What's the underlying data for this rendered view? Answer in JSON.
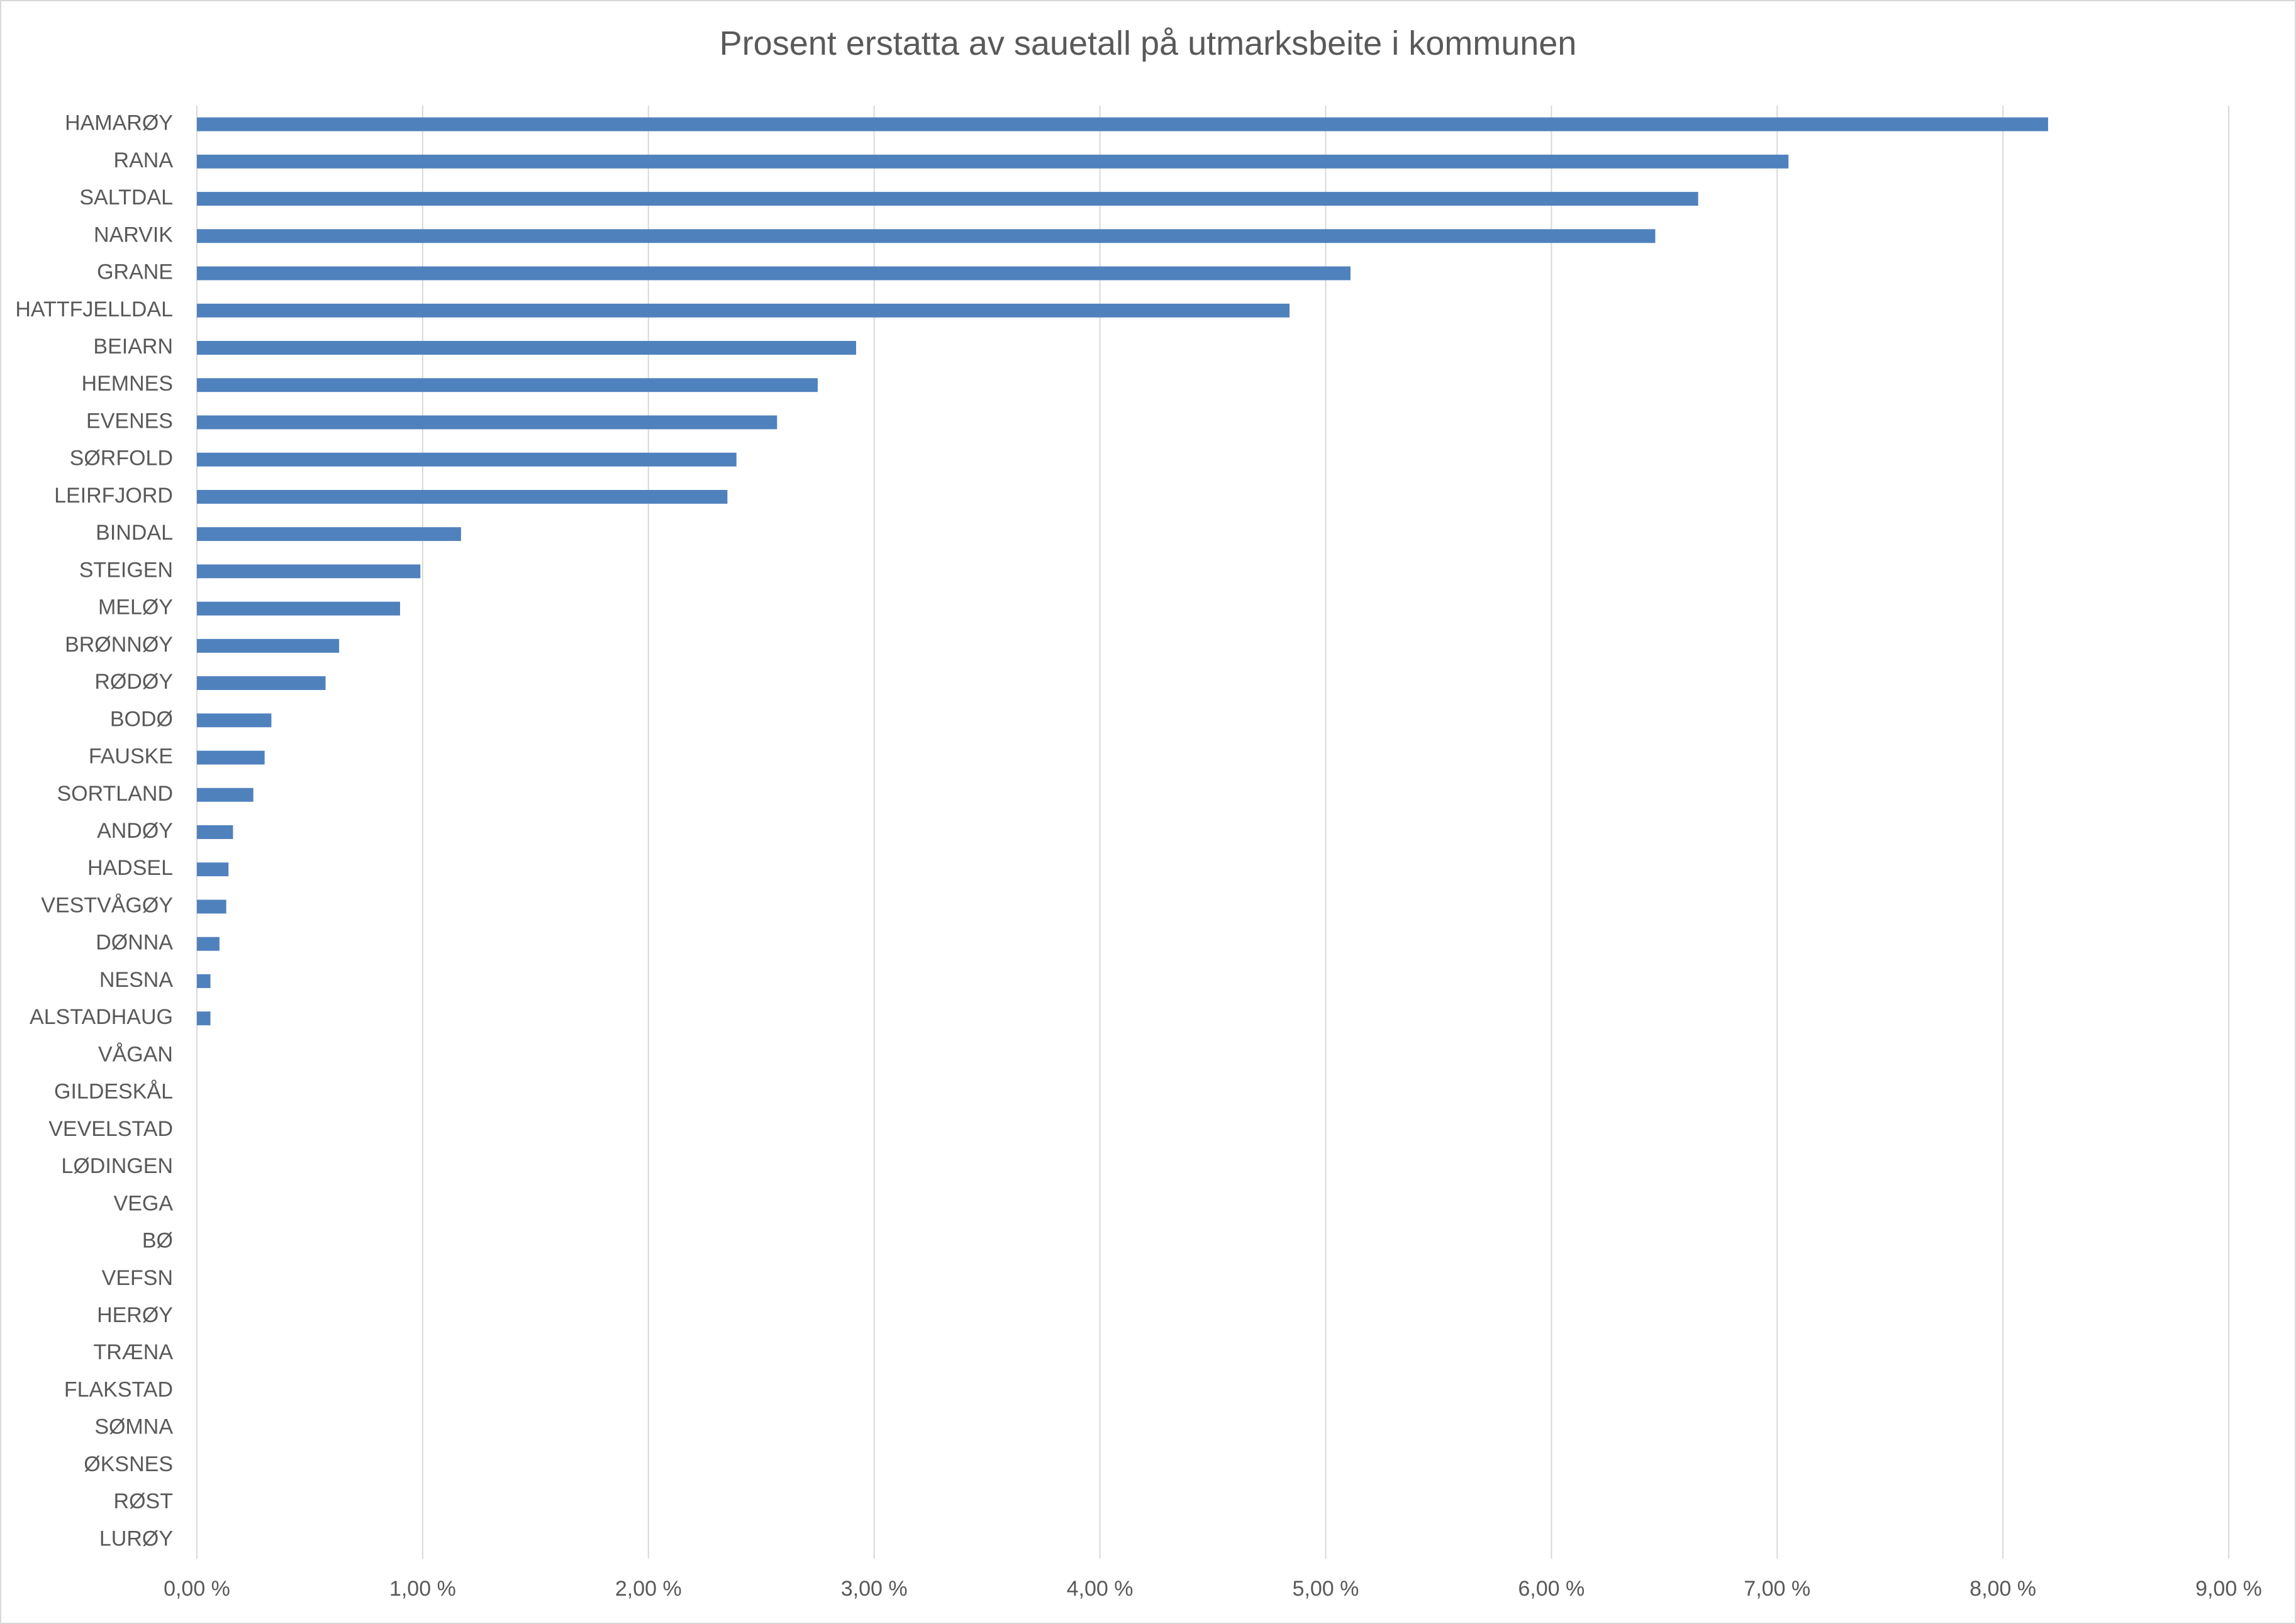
{
  "colors": {
    "bar": "#4f81bd",
    "grid": "#d9d9d9",
    "text": "#595959"
  },
  "chart_data": {
    "type": "bar",
    "orientation": "horizontal",
    "title": "Prosent erstatta av sauetall på utmarksbeite i kommunen",
    "xlabel": "",
    "ylabel": "",
    "xlim": [
      0,
      9
    ],
    "grid": true,
    "legend": "none",
    "x_tick_values": [
      0,
      1,
      2,
      3,
      4,
      5,
      6,
      7,
      8,
      9
    ],
    "x_tick_labels": [
      "0,00 %",
      "1,00 %",
      "2,00 %",
      "3,00 %",
      "4,00 %",
      "5,00 %",
      "6,00 %",
      "7,00 %",
      "8,00 %",
      "9,00 %"
    ],
    "categories": [
      "HAMARØY",
      "RANA",
      "SALTDAL",
      "NARVIK",
      "GRANE",
      "HATTFJELLDAL",
      "BEIARN",
      "HEMNES",
      "EVENES",
      "SØRFOLD",
      "LEIRFJORD",
      "BINDAL",
      "STEIGEN",
      "MELØY",
      "BRØNNØY",
      "RØDØY",
      "BODØ",
      "FAUSKE",
      "SORTLAND",
      "ANDØY",
      "HADSEL",
      "VESTVÅGØY",
      "DØNNA",
      "NESNA",
      "ALSTADHAUG",
      "VÅGAN",
      "GILDESKÅL",
      "VEVELSTAD",
      "LØDINGEN",
      "VEGA",
      "BØ",
      "VEFSN",
      "HERØY",
      "TRÆNA",
      "FLAKSTAD",
      "SØMNA",
      "ØKSNES",
      "RØST",
      "LURØY"
    ],
    "values": [
      8.2,
      7.05,
      6.65,
      6.46,
      5.11,
      4.84,
      2.92,
      2.75,
      2.57,
      2.39,
      2.35,
      1.17,
      0.99,
      0.9,
      0.63,
      0.57,
      0.33,
      0.3,
      0.25,
      0.16,
      0.14,
      0.13,
      0.1,
      0.06,
      0.06,
      0,
      0,
      0,
      0,
      0,
      0,
      0,
      0,
      0,
      0,
      0,
      0,
      0,
      0
    ]
  }
}
